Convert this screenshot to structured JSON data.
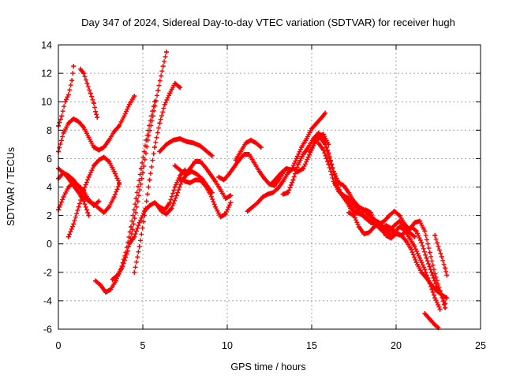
{
  "chart_data": {
    "type": "scatter",
    "title": "Day 347 of 2024, Sidereal Day-to-day VTEC variation (SDTVAR) for receiver hugh",
    "xlabel": "GPS time / hours",
    "ylabel": "SDTVAR / TECUs",
    "xlim": [
      0,
      25
    ],
    "ylim": [
      -6,
      14
    ],
    "xticks": [
      0,
      5,
      10,
      15,
      20,
      25
    ],
    "yticks": [
      -6,
      -4,
      -2,
      0,
      2,
      4,
      6,
      8,
      10,
      12,
      14
    ],
    "grid": true,
    "marker": "plus",
    "color": "#ff0000",
    "series": [
      {
        "x": [
          0.0,
          0.2,
          0.4,
          0.6,
          0.8,
          0.9
        ],
        "y": [
          8.3,
          9.0,
          10.0,
          10.5,
          11.5,
          12.5
        ]
      },
      {
        "x": [
          0.0,
          0.3,
          0.6,
          0.9,
          1.2,
          1.5,
          1.8,
          2.1,
          2.4,
          2.7,
          3.0,
          3.3,
          3.6,
          3.9,
          4.2,
          4.5
        ],
        "y": [
          6.5,
          7.8,
          8.5,
          8.8,
          8.6,
          8.2,
          7.5,
          6.8,
          6.6,
          6.8,
          7.3,
          7.9,
          8.3,
          9.0,
          9.8,
          10.4
        ]
      },
      {
        "x": [
          1.3,
          1.5,
          1.7,
          1.9,
          2.1,
          2.2,
          2.3
        ],
        "y": [
          12.3,
          12.0,
          11.3,
          10.6,
          9.9,
          9.3,
          8.9
        ]
      },
      {
        "x": [
          0.0,
          0.3,
          0.6,
          0.9,
          1.2,
          1.5,
          1.8,
          2.1,
          2.4,
          2.7,
          3.0,
          3.3,
          3.6
        ],
        "y": [
          4.6,
          5.0,
          4.8,
          4.5,
          4.0,
          3.3,
          3.0,
          2.8,
          2.5,
          2.2,
          2.6,
          3.3,
          4.2
        ]
      },
      {
        "x": [
          0.0,
          0.3,
          0.6,
          0.9,
          1.2,
          1.5,
          1.8
        ],
        "y": [
          5.3,
          5.0,
          4.6,
          4.1,
          3.6,
          3.0,
          2.0
        ]
      },
      {
        "x": [
          0.6,
          0.9,
          1.2,
          1.5,
          1.8,
          2.1,
          2.4,
          2.7,
          3.0,
          3.3,
          3.6
        ],
        "y": [
          0.5,
          1.4,
          2.6,
          3.8,
          4.7,
          5.5,
          5.9,
          6.1,
          5.8,
          5.1,
          4.3
        ]
      },
      {
        "x": [
          0.0,
          0.3,
          0.6,
          0.9,
          1.2,
          1.5,
          1.8,
          2.1,
          2.4
        ],
        "y": [
          2.4,
          3.3,
          4.0,
          4.3,
          4.1,
          3.7,
          3.1,
          2.7,
          3.0
        ]
      },
      {
        "x": [
          2.2,
          2.5,
          2.8,
          3.1,
          3.4,
          3.7,
          4.0,
          4.3,
          4.6,
          4.9,
          5.2,
          5.5,
          5.7
        ],
        "y": [
          -2.6,
          -2.9,
          -3.4,
          -3.2,
          -2.6,
          -1.8,
          -0.6,
          1.2,
          3.2,
          5.3,
          7.3,
          9.0,
          10.0
        ]
      },
      {
        "x": [
          3.2,
          3.5,
          3.8,
          4.1,
          4.4,
          4.7,
          5.0,
          5.3,
          5.6,
          5.9,
          6.2,
          6.4
        ],
        "y": [
          -2.5,
          -2.2,
          -1.6,
          -0.5,
          1.0,
          3.0,
          5.0,
          7.3,
          9.0,
          10.8,
          12.5,
          13.5
        ]
      },
      {
        "x": [
          4.5,
          4.8,
          5.1,
          5.4,
          5.7,
          6.0,
          6.3,
          6.6,
          6.9,
          7.2
        ],
        "y": [
          -2.0,
          -0.2,
          2.0,
          4.5,
          6.8,
          8.5,
          9.8,
          10.6,
          11.3,
          11.0
        ]
      },
      {
        "x": [
          4.2,
          4.5,
          4.8,
          5.1,
          5.4,
          5.7,
          6.0,
          6.3,
          6.6,
          6.9,
          7.2,
          7.5
        ],
        "y": [
          0.0,
          0.5,
          1.5,
          2.3,
          2.7,
          2.9,
          2.6,
          2.4,
          2.9,
          4.0,
          4.8,
          5.2
        ]
      },
      {
        "x": [
          5.8,
          6.1,
          6.4,
          6.7,
          7.0,
          7.3,
          7.6,
          7.9,
          8.2,
          8.5,
          8.8,
          9.1
        ],
        "y": [
          2.8,
          2.3,
          2.1,
          2.5,
          3.4,
          4.4,
          4.9,
          5.1,
          4.9,
          4.6,
          4.1,
          3.6
        ]
      },
      {
        "x": [
          6.0,
          6.4,
          6.8,
          7.2,
          7.6,
          8.0,
          8.4,
          8.8,
          9.1
        ],
        "y": [
          6.5,
          7.0,
          7.3,
          7.4,
          7.2,
          7.1,
          6.9,
          6.5,
          6.2
        ]
      },
      {
        "x": [
          6.9,
          7.2,
          7.5,
          7.8,
          8.1,
          8.4,
          8.7,
          9.0,
          9.3,
          9.6,
          9.9,
          10.2
        ],
        "y": [
          5.5,
          5.2,
          4.9,
          5.3,
          5.8,
          5.8,
          5.4,
          4.9,
          4.4,
          3.8,
          3.2,
          3.4
        ]
      },
      {
        "x": [
          7.2,
          7.5,
          7.8,
          8.1,
          8.4,
          8.7,
          9.0,
          9.3,
          9.6,
          9.9,
          10.2
        ],
        "y": [
          4.6,
          4.4,
          4.3,
          4.5,
          4.5,
          4.1,
          3.5,
          2.6,
          1.9,
          2.1,
          2.9
        ]
      },
      {
        "x": [
          9.5,
          9.8,
          10.1,
          10.4,
          10.7,
          11.0,
          11.3,
          11.6,
          11.9,
          12.2,
          12.5,
          12.8,
          13.1,
          13.4
        ],
        "y": [
          4.7,
          4.5,
          4.9,
          5.4,
          5.9,
          6.3,
          6.3,
          5.7,
          5.1,
          4.6,
          4.2,
          4.1,
          4.6,
          5.2
        ]
      },
      {
        "x": [
          10.5,
          10.8,
          11.1,
          11.4,
          11.7,
          12.0
        ],
        "y": [
          5.9,
          6.5,
          7.1,
          7.3,
          7.1,
          6.8
        ]
      },
      {
        "x": [
          11.2,
          11.5,
          11.8,
          12.1,
          12.4,
          12.7,
          13.0,
          13.3,
          13.6,
          13.9,
          14.2,
          14.5,
          14.8,
          15.1,
          15.4,
          15.7,
          16.0
        ],
        "y": [
          2.3,
          2.6,
          2.9,
          3.3,
          3.5,
          3.6,
          3.9,
          4.4,
          5.0,
          5.3,
          5.1,
          5.3,
          6.1,
          6.9,
          7.6,
          7.7,
          7.0
        ]
      },
      {
        "x": [
          12.6,
          12.9,
          13.2,
          13.5,
          13.8,
          14.1,
          14.4,
          14.7,
          15.0,
          15.3,
          15.6,
          15.8
        ],
        "y": [
          4.2,
          4.6,
          5.0,
          5.3,
          5.2,
          6.0,
          6.8,
          7.4,
          8.1,
          8.5,
          8.9,
          9.2
        ]
      },
      {
        "x": [
          13.3,
          13.6,
          13.9,
          14.2,
          14.5,
          14.8,
          15.1,
          15.4,
          15.7,
          16.0,
          16.3,
          16.6,
          16.9,
          17.2,
          17.5,
          17.8,
          18.1,
          18.4,
          18.7,
          19.0,
          19.3,
          19.6,
          19.9,
          20.2,
          20.5,
          20.8,
          21.1
        ],
        "y": [
          3.5,
          3.6,
          4.5,
          5.6,
          6.3,
          6.8,
          7.4,
          7.8,
          7.4,
          6.4,
          5.1,
          4.3,
          4.1,
          3.6,
          3.0,
          2.6,
          2.4,
          2.0,
          1.7,
          1.5,
          1.1,
          0.9,
          1.3,
          1.6,
          1.2,
          0.8,
          0.5
        ]
      },
      {
        "x": [
          14.9,
          15.2,
          15.5,
          15.8,
          16.1,
          16.4,
          16.7,
          17.0,
          17.3,
          17.6,
          17.9,
          18.2,
          18.5,
          18.8,
          19.1,
          19.4,
          19.7,
          20.0,
          20.3,
          20.6,
          20.9,
          21.2,
          21.5,
          21.8,
          22.1,
          22.4,
          22.7,
          23.0
        ],
        "y": [
          6.5,
          7.2,
          7.5,
          7.0,
          5.8,
          4.6,
          3.6,
          3.1,
          2.8,
          2.2,
          2.1,
          1.9,
          1.5,
          1.4,
          1.1,
          0.6,
          0.4,
          0.7,
          0.6,
          0.2,
          -0.4,
          -1.3,
          -2.0,
          -2.4,
          -2.9,
          -3.3,
          -3.6,
          -3.8
        ]
      },
      {
        "x": [
          15.4,
          15.7,
          16.0,
          16.3,
          16.6,
          16.9,
          17.2,
          17.5,
          17.8,
          18.1,
          18.4,
          18.7,
          19.0,
          19.3,
          19.6,
          19.9,
          20.2,
          20.5,
          20.8,
          21.1,
          21.4,
          21.7,
          22.0,
          22.3,
          22.6
        ],
        "y": [
          7.1,
          6.6,
          5.6,
          4.4,
          3.7,
          3.4,
          3.2,
          2.8,
          2.3,
          1.9,
          1.6,
          1.6,
          1.2,
          0.8,
          0.6,
          0.8,
          1.2,
          1.0,
          0.4,
          -0.2,
          -1.0,
          -1.8,
          -2.8,
          -3.8,
          -4.6
        ]
      },
      {
        "x": [
          16.4,
          16.7,
          17.0,
          17.3,
          17.6,
          17.9,
          18.2,
          18.5,
          18.8,
          19.1,
          19.4,
          19.7,
          20.0,
          20.3,
          20.6,
          20.9,
          21.2,
          21.5,
          21.8,
          22.1,
          22.4,
          22.7,
          22.9
        ],
        "y": [
          4.2,
          3.6,
          3.1,
          2.5,
          2.2,
          2.1,
          2.4,
          2.2,
          1.4,
          1.0,
          1.3,
          1.1,
          0.8,
          0.6,
          0.9,
          1.2,
          0.9,
          0.1,
          -1.0,
          -2.0,
          -3.0,
          -3.6,
          -4.2
        ]
      },
      {
        "x": [
          17.2,
          17.5,
          17.8,
          18.1,
          18.4,
          18.7,
          19.0,
          19.3,
          19.6,
          19.9,
          20.2,
          20.5,
          20.8,
          21.1,
          21.4,
          21.7,
          22.0,
          22.3,
          22.6,
          22.9
        ],
        "y": [
          2.2,
          2.0,
          1.2,
          0.7,
          0.8,
          1.2,
          1.4,
          1.6,
          2.0,
          2.3,
          2.0,
          1.4,
          1.0,
          1.5,
          1.6,
          0.9,
          -0.6,
          -2.1,
          -3.3,
          -4.5
        ]
      },
      {
        "x": [
          21.7,
          22.0,
          22.3,
          22.5
        ],
        "y": [
          -4.9,
          -5.3,
          -5.7,
          -5.9
        ]
      },
      {
        "x": [
          22.3,
          22.5,
          22.7,
          22.9,
          23.0
        ],
        "y": [
          0.6,
          -0.2,
          -0.9,
          -1.7,
          -2.2
        ]
      }
    ]
  }
}
